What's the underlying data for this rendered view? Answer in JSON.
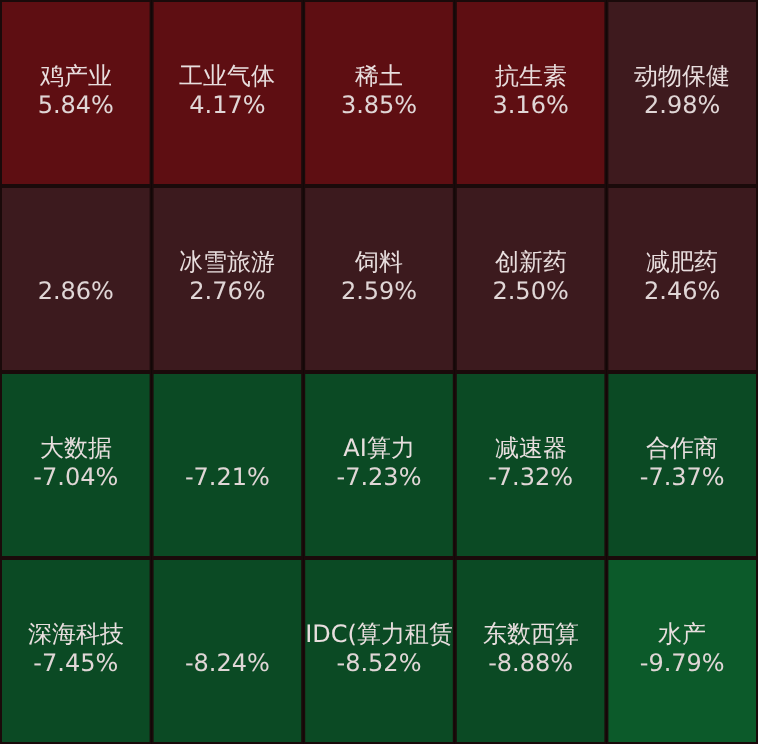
{
  "chart_data": {
    "type": "other",
    "categories": [
      "鸡产业",
      "工业气体",
      "稀土",
      "抗生素",
      "动物保健",
      null,
      "冰雪旅游",
      "饲料",
      "创新药",
      "减肥药",
      "大数据",
      null,
      "AI算力",
      "减速器",
      "合作商",
      "深海科技",
      null,
      "IDC(算力租赁",
      "东数西算",
      "水产"
    ],
    "values": [
      5.84,
      4.17,
      3.85,
      3.16,
      2.98,
      2.86,
      2.76,
      2.59,
      2.5,
      2.46,
      -7.04,
      -7.21,
      -7.23,
      -7.32,
      -7.37,
      -7.45,
      -8.24,
      -8.52,
      -8.88,
      -9.79
    ],
    "value_labels": [
      "5.84%",
      "4.17%",
      "3.85%",
      "3.16%",
      "2.98%",
      "2.86%",
      "2.76%",
      "2.59%",
      "2.50%",
      "2.46%",
      "-7.04%",
      "-7.21%",
      "-7.23%",
      "-7.32%",
      "-7.37%",
      "-7.45%",
      "-8.24%",
      "-8.52%",
      "-8.88%",
      "-9.79%"
    ],
    "colors": [
      "#5e0e12",
      "#5e0e12",
      "#5e0e12",
      "#5e0e12",
      "#3e1a1e",
      "#3c1a1e",
      "#3c1a1e",
      "#3c1a1e",
      "#3c1a1e",
      "#3c1a1e",
      "#0b4a24",
      "#0b4a24",
      "#0b4a24",
      "#0b4a24",
      "#0b4a24",
      "#0b4a24",
      "#0b4a24",
      "#0b4a24",
      "#0b4a24",
      "#0c5a2a"
    ],
    "data_labels": true
  }
}
